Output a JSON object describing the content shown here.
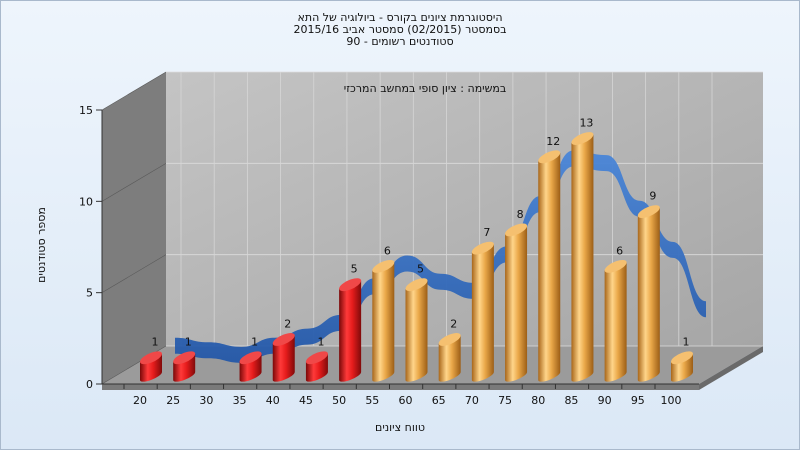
{
  "window": {
    "title_lines": [
      "היסטוגרמת ציונים בקורס - ביולוגיה של התא",
      "בסמסטר  (02/2015)  סמסטר אביב 2015/16",
      "סטודנטים רשומים - 90"
    ]
  },
  "chart_data": {
    "type": "bar",
    "title": "היסטוגרמת ציונים בקורס - ביולוגיה של התא",
    "annotation": "במשימה : ציון סופי במחשב המרכזי",
    "xlabel": "טווח ציונים",
    "ylabel": "מספר סטודנטים",
    "ylim": [
      0,
      15
    ],
    "yticks": [
      0,
      5,
      10,
      15
    ],
    "categories": [
      "20",
      "25",
      "30",
      "35",
      "40",
      "45",
      "50",
      "55",
      "60",
      "65",
      "70",
      "75",
      "80",
      "85",
      "90",
      "95",
      "100"
    ],
    "values": [
      1,
      1,
      0,
      1,
      2,
      1,
      5,
      6,
      5,
      2,
      7,
      8,
      12,
      13,
      6,
      9,
      1
    ],
    "bar_colors": [
      "red",
      "red",
      "red",
      "red",
      "red",
      "red",
      "red",
      "orange",
      "orange",
      "orange",
      "orange",
      "orange",
      "orange",
      "orange",
      "orange",
      "orange",
      "orange"
    ],
    "grid": true,
    "curve": "smoothed distribution ribbon behind bars",
    "colors": {
      "fail_bar": "#d71e1e",
      "pass_bar": "#e8a849",
      "ribbon": "#2f6cc0",
      "wall": "#b3b3b3",
      "side_wall": "#7a7a7a",
      "floor": "#9a9a9a"
    }
  }
}
